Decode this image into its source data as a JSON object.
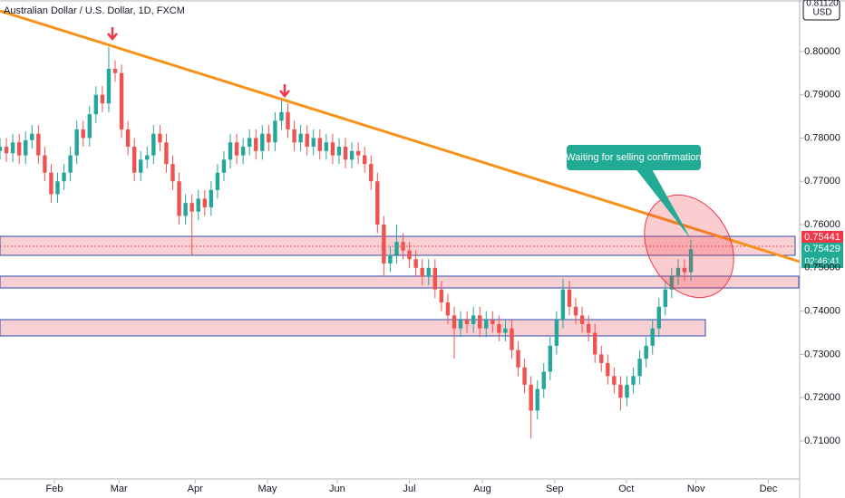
{
  "chart_data": {
    "type": "candlestick",
    "title": "Australian Dollar / U.S. Dollar, 1D, FXCM",
    "currency": "USD",
    "top_label": "0.81120",
    "price_labels": [
      "0.75441",
      "0.75429",
      "02:46:41"
    ],
    "annotation": "Waiting for selling confirmation",
    "up_color": "#26a69a",
    "down_color": "#ef5350",
    "xlim": [
      0,
      125
    ],
    "xticks": [
      {
        "value": 8.5,
        "label": "Feb"
      },
      {
        "value": 18.6,
        "label": "Mar"
      },
      {
        "value": 30.5,
        "label": "Apr"
      },
      {
        "value": 41.8,
        "label": "May"
      },
      {
        "value": 52.7,
        "label": "Jun"
      },
      {
        "value": 64,
        "label": "Jul"
      },
      {
        "value": 75.4,
        "label": "Aug"
      },
      {
        "value": 86.7,
        "label": "Sep"
      },
      {
        "value": 97.9,
        "label": "Oct"
      },
      {
        "value": 108.8,
        "label": "Nov"
      },
      {
        "value": 120.1,
        "label": "Dec"
      }
    ],
    "ylim": [
      0.701,
      0.8119
    ],
    "yticks": [
      {
        "value": 0.71,
        "label": "0.71000"
      },
      {
        "value": 0.72,
        "label": "0.72000"
      },
      {
        "value": 0.73,
        "label": "0.73000"
      },
      {
        "value": 0.74,
        "label": "0.74000"
      },
      {
        "value": 0.75,
        "label": "0.75000"
      },
      {
        "value": 0.76,
        "label": "0.76000"
      },
      {
        "value": 0.77,
        "label": "0.77000"
      },
      {
        "value": 0.78,
        "label": "0.78000"
      },
      {
        "value": 0.79,
        "label": "0.79000"
      },
      {
        "value": 0.8,
        "label": "0.80000"
      }
    ],
    "candles": [
      [
        0.777,
        0.78,
        0.775,
        0.778
      ],
      [
        0.778,
        0.78,
        0.7745,
        0.7765
      ],
      [
        0.7765,
        0.781,
        0.7745,
        0.779
      ],
      [
        0.779,
        0.781,
        0.774,
        0.776
      ],
      [
        0.776,
        0.7815,
        0.774,
        0.7795
      ],
      [
        0.7795,
        0.783,
        0.7775,
        0.781
      ],
      [
        0.781,
        0.783,
        0.774,
        0.776
      ],
      [
        0.776,
        0.778,
        0.77,
        0.772
      ],
      [
        0.772,
        0.774,
        0.765,
        0.767
      ],
      [
        0.767,
        0.772,
        0.765,
        0.77
      ],
      [
        0.77,
        0.774,
        0.768,
        0.772
      ],
      [
        0.772,
        0.778,
        0.77,
        0.776
      ],
      [
        0.776,
        0.784,
        0.774,
        0.782
      ],
      [
        0.782,
        0.784,
        0.778,
        0.78
      ],
      [
        0.78,
        0.7875,
        0.778,
        0.7855
      ],
      [
        0.7855,
        0.792,
        0.7835,
        0.79
      ],
      [
        0.79,
        0.792,
        0.786,
        0.788
      ],
      [
        0.788,
        0.801,
        0.786,
        0.796
      ],
      [
        0.796,
        0.798,
        0.793,
        0.795
      ],
      [
        0.795,
        0.797,
        0.78,
        0.782
      ],
      [
        0.782,
        0.784,
        0.776,
        0.778
      ],
      [
        0.778,
        0.78,
        0.77,
        0.772
      ],
      [
        0.772,
        0.777,
        0.77,
        0.775
      ],
      [
        0.775,
        0.778,
        0.773,
        0.776
      ],
      [
        0.776,
        0.783,
        0.774,
        0.781
      ],
      [
        0.781,
        0.783,
        0.777,
        0.779
      ],
      [
        0.779,
        0.781,
        0.772,
        0.774
      ],
      [
        0.774,
        0.776,
        0.768,
        0.77
      ],
      [
        0.77,
        0.772,
        0.76,
        0.762
      ],
      [
        0.762,
        0.767,
        0.76,
        0.765
      ],
      [
        0.765,
        0.767,
        0.753,
        0.763
      ],
      [
        0.763,
        0.768,
        0.761,
        0.766
      ],
      [
        0.766,
        0.768,
        0.762,
        0.764
      ],
      [
        0.764,
        0.77,
        0.762,
        0.768
      ],
      [
        0.768,
        0.774,
        0.766,
        0.772
      ],
      [
        0.772,
        0.777,
        0.77,
        0.775
      ],
      [
        0.775,
        0.781,
        0.773,
        0.779
      ],
      [
        0.779,
        0.781,
        0.774,
        0.776
      ],
      [
        0.776,
        0.78,
        0.774,
        0.778
      ],
      [
        0.778,
        0.782,
        0.776,
        0.78
      ],
      [
        0.78,
        0.782,
        0.775,
        0.777
      ],
      [
        0.777,
        0.783,
        0.775,
        0.781
      ],
      [
        0.781,
        0.783,
        0.777,
        0.779
      ],
      [
        0.779,
        0.786,
        0.777,
        0.784
      ],
      [
        0.784,
        0.789,
        0.782,
        0.786
      ],
      [
        0.786,
        0.788,
        0.78,
        0.782
      ],
      [
        0.782,
        0.784,
        0.777,
        0.779
      ],
      [
        0.779,
        0.783,
        0.777,
        0.781
      ],
      [
        0.781,
        0.783,
        0.776,
        0.778
      ],
      [
        0.778,
        0.782,
        0.776,
        0.78
      ],
      [
        0.78,
        0.782,
        0.775,
        0.777
      ],
      [
        0.777,
        0.781,
        0.775,
        0.779
      ],
      [
        0.779,
        0.781,
        0.774,
        0.776
      ],
      [
        0.776,
        0.78,
        0.774,
        0.778
      ],
      [
        0.778,
        0.78,
        0.773,
        0.775
      ],
      [
        0.775,
        0.779,
        0.773,
        0.777
      ],
      [
        0.777,
        0.779,
        0.774,
        0.776
      ],
      [
        0.776,
        0.778,
        0.772,
        0.774
      ],
      [
        0.774,
        0.776,
        0.768,
        0.77
      ],
      [
        0.77,
        0.772,
        0.758,
        0.76
      ],
      [
        0.76,
        0.762,
        0.748,
        0.751
      ],
      [
        0.751,
        0.755,
        0.749,
        0.753
      ],
      [
        0.753,
        0.76,
        0.751,
        0.756
      ],
      [
        0.756,
        0.758,
        0.752,
        0.754
      ],
      [
        0.754,
        0.756,
        0.75,
        0.752
      ],
      [
        0.752,
        0.754,
        0.748,
        0.75
      ],
      [
        0.75,
        0.752,
        0.746,
        0.748
      ],
      [
        0.748,
        0.752,
        0.746,
        0.75
      ],
      [
        0.75,
        0.752,
        0.743,
        0.745
      ],
      [
        0.745,
        0.747,
        0.74,
        0.742
      ],
      [
        0.742,
        0.744,
        0.737,
        0.739
      ],
      [
        0.739,
        0.741,
        0.729,
        0.736
      ],
      [
        0.736,
        0.74,
        0.734,
        0.738
      ],
      [
        0.738,
        0.74,
        0.735,
        0.737
      ],
      [
        0.737,
        0.741,
        0.735,
        0.739
      ],
      [
        0.739,
        0.741,
        0.734,
        0.736
      ],
      [
        0.736,
        0.74,
        0.734,
        0.738
      ],
      [
        0.738,
        0.74,
        0.735,
        0.737
      ],
      [
        0.737,
        0.739,
        0.733,
        0.735
      ],
      [
        0.735,
        0.738,
        0.733,
        0.736
      ],
      [
        0.736,
        0.738,
        0.729,
        0.731
      ],
      [
        0.731,
        0.733,
        0.725,
        0.727
      ],
      [
        0.727,
        0.729,
        0.721,
        0.723
      ],
      [
        0.723,
        0.725,
        0.7105,
        0.717
      ],
      [
        0.717,
        0.724,
        0.715,
        0.722
      ],
      [
        0.722,
        0.728,
        0.72,
        0.726
      ],
      [
        0.726,
        0.734,
        0.724,
        0.732
      ],
      [
        0.732,
        0.74,
        0.73,
        0.738
      ],
      [
        0.738,
        0.7475,
        0.736,
        0.745
      ],
      [
        0.745,
        0.747,
        0.739,
        0.741
      ],
      [
        0.741,
        0.743,
        0.737,
        0.739
      ],
      [
        0.739,
        0.741,
        0.735,
        0.737
      ],
      [
        0.737,
        0.739,
        0.733,
        0.735
      ],
      [
        0.735,
        0.737,
        0.728,
        0.73
      ],
      [
        0.73,
        0.732,
        0.726,
        0.728
      ],
      [
        0.728,
        0.73,
        0.723,
        0.725
      ],
      [
        0.725,
        0.727,
        0.721,
        0.723
      ],
      [
        0.723,
        0.725,
        0.717,
        0.72
      ],
      [
        0.72,
        0.725,
        0.718,
        0.723
      ],
      [
        0.723,
        0.727,
        0.721,
        0.725
      ],
      [
        0.725,
        0.731,
        0.723,
        0.729
      ],
      [
        0.729,
        0.734,
        0.727,
        0.732
      ],
      [
        0.732,
        0.738,
        0.73,
        0.736
      ],
      [
        0.736,
        0.743,
        0.734,
        0.741
      ],
      [
        0.741,
        0.747,
        0.739,
        0.745
      ],
      [
        0.745,
        0.75,
        0.743,
        0.748
      ],
      [
        0.748,
        0.752,
        0.746,
        0.75
      ],
      [
        0.75,
        0.752,
        0.747,
        0.749
      ],
      [
        0.749,
        0.7565,
        0.747,
        0.7543
      ]
    ]
  }
}
